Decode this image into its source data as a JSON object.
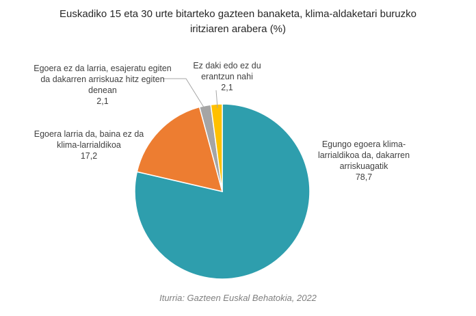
{
  "chart_data": {
    "type": "pie",
    "title_lines": [
      "Euskadiko 15 eta 30 urte bitarteko gazteen banaketa, klima-aldaketari buruzko",
      "iritziaren arabera (%)"
    ],
    "source": "Iturria: Gazteen Euskal Behatokia, 2022",
    "slices": [
      {
        "label_lines": [
          "Egungo egoera klima-",
          "larrialdikoa da, dakarren",
          "arriskuagatik"
        ],
        "value": 78.7,
        "value_text": "78,7",
        "color": "#2E9EAD"
      },
      {
        "label_lines": [
          "Egoera larria da, baina ez da",
          "klima-larrialdikoa"
        ],
        "value": 17.2,
        "value_text": "17,2",
        "color": "#ED7D31"
      },
      {
        "label_lines": [
          "Egoera ez da larria, esajeratu egiten",
          "da dakarren arriskuaz hitz egiten",
          "denean"
        ],
        "value": 2.1,
        "value_text": "2,1",
        "color": "#A5A5A5"
      },
      {
        "label_lines": [
          "Ez daki edo ez du",
          "erantzun nahi"
        ],
        "value": 2.1,
        "value_text": "2,1",
        "color": "#FFC000"
      }
    ],
    "legend": "none"
  }
}
